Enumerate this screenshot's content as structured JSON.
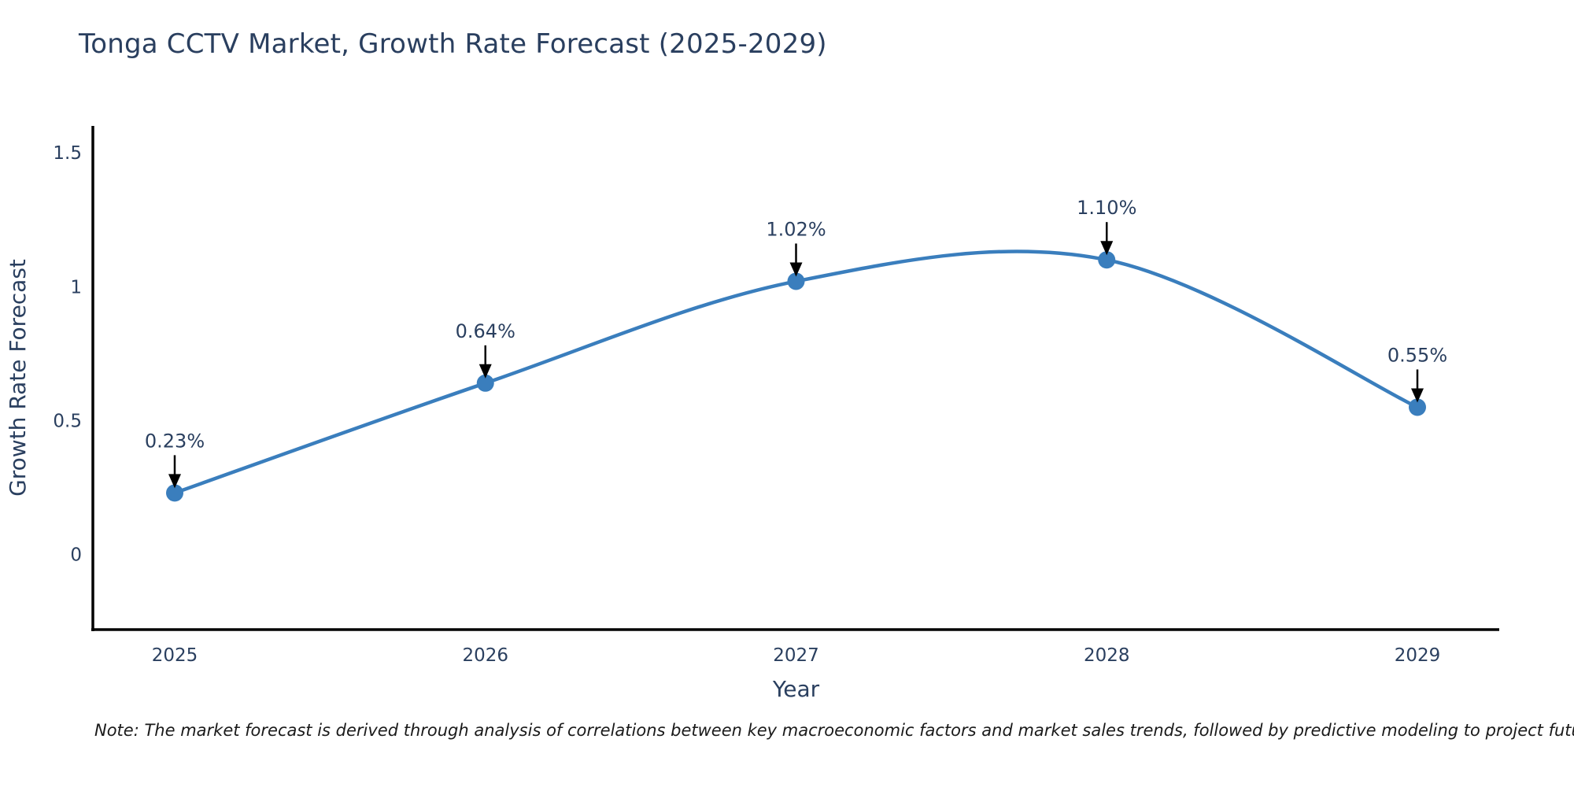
{
  "page": {
    "background": "#ffffff"
  },
  "header": {
    "title": "Tonga CCTV Market, Growth Rate Forecast (2025-2029)",
    "title_color": "#2a3f5f"
  },
  "footer": {
    "note": "Note: The market forecast is derived through analysis of correlations between key macroeconomic factors and market sales trends, followed by predictive modeling to project future sales"
  },
  "chart_data": {
    "type": "line",
    "title": "Tonga CCTV Market, Growth Rate Forecast (2025-2029)",
    "categories": [
      "2025",
      "2026",
      "2027",
      "2028",
      "2029"
    ],
    "values": [
      0.23,
      0.64,
      1.02,
      1.1,
      0.55
    ],
    "point_labels": [
      "0.23%",
      "0.64%",
      "1.02%",
      "1.10%",
      "0.55%"
    ],
    "xlabel": "Year",
    "ylabel": "Growth Rate Forecast",
    "yticks": [
      0,
      0.5,
      1,
      1.5
    ],
    "ytick_labels": [
      "0",
      "0.5",
      "1",
      "1.5"
    ],
    "ylim": [
      -0.28,
      1.6
    ],
    "grid": false,
    "legend": "none",
    "line_style": "spline",
    "colors": {
      "line": "#3a7ebd",
      "marker": "#3a7ebd",
      "axis_line": "#000000",
      "tick_label": "#2a3f5f",
      "axis_title": "#2a3f5f",
      "annotation_text": "#2a3f5f",
      "annotation_arrow": "#000000"
    }
  }
}
